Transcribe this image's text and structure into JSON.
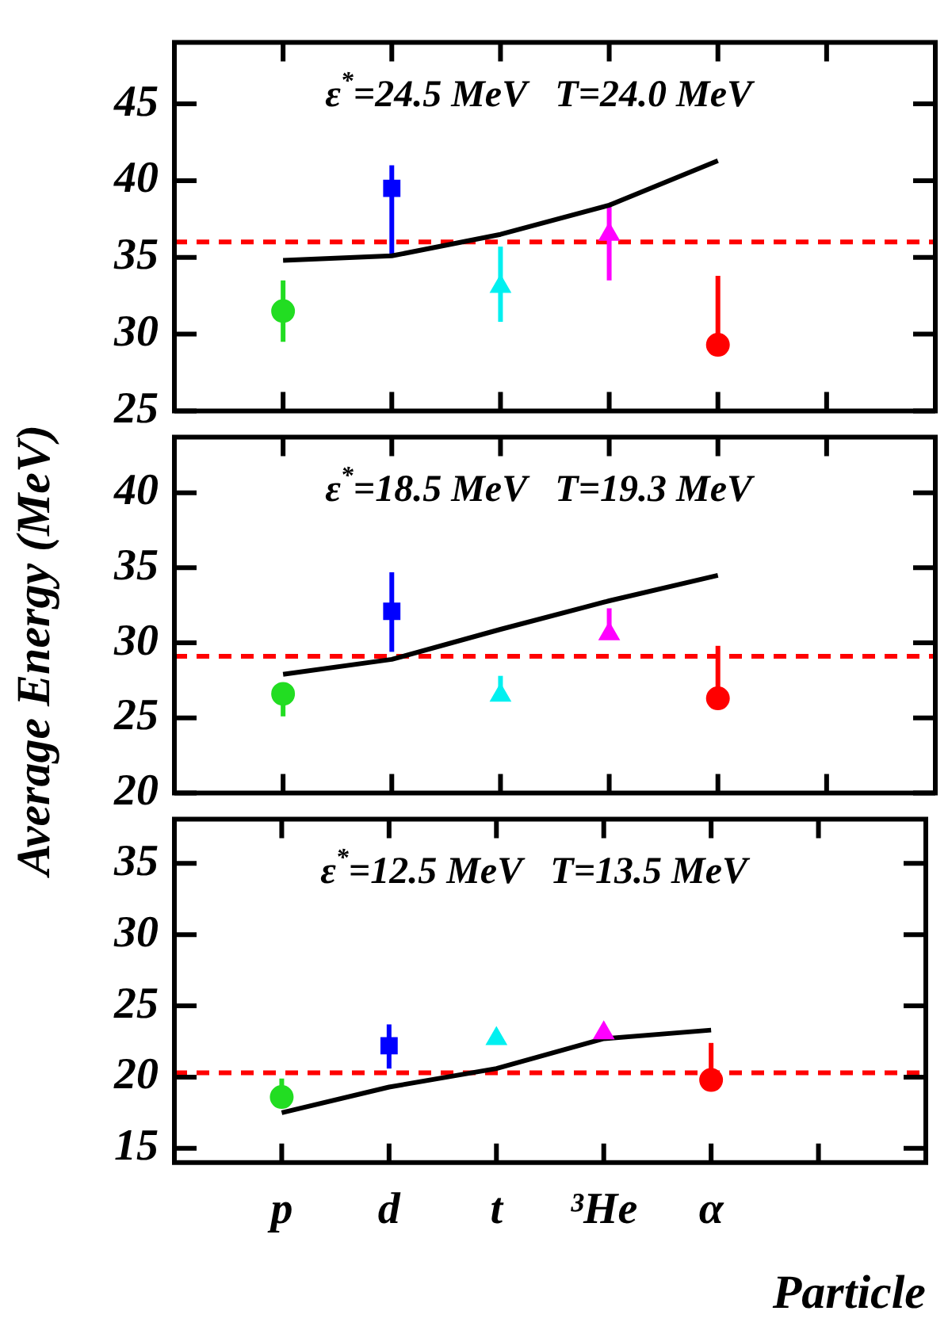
{
  "chart_data": [
    {
      "type": "scatter",
      "annotations": [
        "ε$^{*}$=24.5 MeV   T=24.0 MeV"
      ],
      "categories": [
        null,
        null,
        null,
        null,
        null,
        null,
        null,
        null
      ],
      "ylim": [
        25,
        49
      ],
      "yticks": [
        25,
        30,
        35,
        40,
        45
      ],
      "tick_labels": "y",
      "series": [
        {
          "type": "scatter",
          "color": "#22dd22",
          "marker": "circle",
          "values": [
            null,
            31.5,
            null,
            null,
            null,
            null,
            null,
            null
          ],
          "errors": [
            null,
            [
              29.5,
              33.5
            ],
            null,
            null,
            null,
            null,
            null,
            null
          ]
        },
        {
          "type": "scatter",
          "color": "#0000ff",
          "marker": "square",
          "values": [
            null,
            null,
            39.5,
            null,
            null,
            null,
            null,
            null
          ],
          "errors": [
            null,
            null,
            [
              35.1,
              41.0
            ],
            null,
            null,
            null,
            null,
            null
          ]
        },
        {
          "type": "scatter",
          "color": "#00f0f0",
          "marker": "triangle",
          "values": [
            null,
            null,
            null,
            33.1,
            null,
            null,
            null,
            null
          ],
          "errors": [
            null,
            null,
            null,
            [
              30.8,
              35.7
            ],
            null,
            null,
            null,
            null
          ]
        },
        {
          "type": "scatter",
          "color": "#ff00ff",
          "marker": "triangle",
          "values": [
            null,
            null,
            null,
            null,
            36.5,
            null,
            null,
            null
          ],
          "errors": [
            null,
            null,
            null,
            null,
            [
              33.5,
              38.4
            ],
            null,
            null,
            null
          ]
        },
        {
          "type": "scatter",
          "color": "#ff0000",
          "marker": "circle",
          "values": [
            null,
            null,
            null,
            null,
            null,
            29.3,
            null,
            null
          ],
          "errors": [
            null,
            null,
            null,
            null,
            null,
            [
              29.3,
              33.8
            ],
            null,
            null
          ]
        },
        {
          "type": "line",
          "color": "#000000",
          "marker": "none",
          "line_style": "solid",
          "values": [
            null,
            34.8,
            35.1,
            36.5,
            38.4,
            41.3,
            null,
            null
          ]
        }
      ],
      "ref_lines": [
        {
          "axis": "y",
          "value": 36.0,
          "color": "#ff0000",
          "line_style": "dashed"
        }
      ]
    },
    {
      "type": "scatter",
      "ylabel": "Average Energy (MeV)",
      "annotations": [
        "ε$^{*}$=18.5 MeV   T=19.3 MeV"
      ],
      "categories": [
        null,
        null,
        null,
        null,
        null,
        null,
        null,
        null
      ],
      "ylim": [
        20,
        43.7
      ],
      "yticks": [
        20,
        25,
        30,
        35,
        40
      ],
      "tick_labels": "y",
      "series": [
        {
          "type": "scatter",
          "color": "#22dd22",
          "marker": "circle",
          "values": [
            null,
            26.6,
            null,
            null,
            null,
            null,
            null,
            null
          ],
          "errors": [
            null,
            [
              25.1,
              26.6
            ],
            null,
            null,
            null,
            null,
            null,
            null
          ]
        },
        {
          "type": "scatter",
          "color": "#0000ff",
          "marker": "square",
          "values": [
            null,
            null,
            32.1,
            null,
            null,
            null,
            null,
            null
          ],
          "errors": [
            null,
            null,
            [
              29.4,
              34.7
            ],
            null,
            null,
            null,
            null,
            null
          ]
        },
        {
          "type": "scatter",
          "color": "#00f0f0",
          "marker": "triangle",
          "values": [
            null,
            null,
            null,
            26.5,
            null,
            null,
            null,
            null
          ],
          "errors": [
            null,
            null,
            null,
            [
              26.5,
              27.8
            ],
            null,
            null,
            null,
            null
          ]
        },
        {
          "type": "scatter",
          "color": "#ff00ff",
          "marker": "triangle",
          "values": [
            null,
            null,
            null,
            null,
            30.6,
            null,
            null,
            null
          ],
          "errors": [
            null,
            null,
            null,
            null,
            [
              30.6,
              32.3
            ],
            null,
            null,
            null
          ]
        },
        {
          "type": "scatter",
          "color": "#ff0000",
          "marker": "circle",
          "values": [
            null,
            null,
            null,
            null,
            null,
            26.3,
            null,
            null
          ],
          "errors": [
            null,
            null,
            null,
            null,
            null,
            [
              26.3,
              29.8
            ],
            null,
            null
          ]
        },
        {
          "type": "line",
          "color": "#000000",
          "marker": "none",
          "line_style": "solid",
          "values": [
            null,
            27.9,
            28.9,
            30.9,
            32.8,
            34.5,
            null,
            null
          ]
        }
      ],
      "ref_lines": [
        {
          "axis": "y",
          "value": 29.1,
          "color": "#ff0000",
          "line_style": "dashed"
        }
      ]
    },
    {
      "type": "scatter",
      "xlabel": "Particle",
      "annotations": [
        "ε$^{*}$=12.5 MeV   T=13.5 MeV"
      ],
      "categories": [
        null,
        "p",
        "d",
        "t",
        "³He",
        "α",
        null,
        null
      ],
      "ylim": [
        14,
        38.1
      ],
      "yticks": [
        15,
        20,
        25,
        30,
        35
      ],
      "series": [
        {
          "type": "scatter",
          "color": "#22dd22",
          "marker": "circle",
          "values": [
            null,
            18.6,
            null,
            null,
            null,
            null,
            null,
            null
          ],
          "errors": [
            null,
            [
              18.6,
              19.9
            ],
            null,
            null,
            null,
            null,
            null,
            null
          ]
        },
        {
          "type": "scatter",
          "color": "#0000ff",
          "marker": "square",
          "values": [
            null,
            null,
            22.2,
            null,
            null,
            null,
            null,
            null
          ],
          "errors": [
            null,
            null,
            [
              20.6,
              23.7
            ],
            null,
            null,
            null,
            null,
            null
          ]
        },
        {
          "type": "scatter",
          "color": "#00f0f0",
          "marker": "triangle",
          "values": [
            null,
            null,
            null,
            22.7,
            null,
            null,
            null,
            null
          ]
        },
        {
          "type": "scatter",
          "color": "#ff00ff",
          "marker": "triangle",
          "values": [
            null,
            null,
            null,
            null,
            23.1,
            null,
            null,
            null
          ]
        },
        {
          "type": "scatter",
          "color": "#ff0000",
          "marker": "circle",
          "values": [
            null,
            null,
            null,
            null,
            null,
            19.8,
            null,
            null
          ],
          "errors": [
            null,
            null,
            null,
            null,
            null,
            [
              19.8,
              22.4
            ],
            null,
            null
          ]
        },
        {
          "type": "line",
          "color": "#000000",
          "marker": "none",
          "line_style": "solid",
          "values": [
            null,
            17.5,
            19.3,
            20.6,
            22.7,
            23.3,
            null,
            null
          ]
        }
      ],
      "ref_lines": [
        {
          "axis": "y",
          "value": 20.3,
          "color": "#ff0000",
          "line_style": "dashed"
        }
      ]
    }
  ]
}
